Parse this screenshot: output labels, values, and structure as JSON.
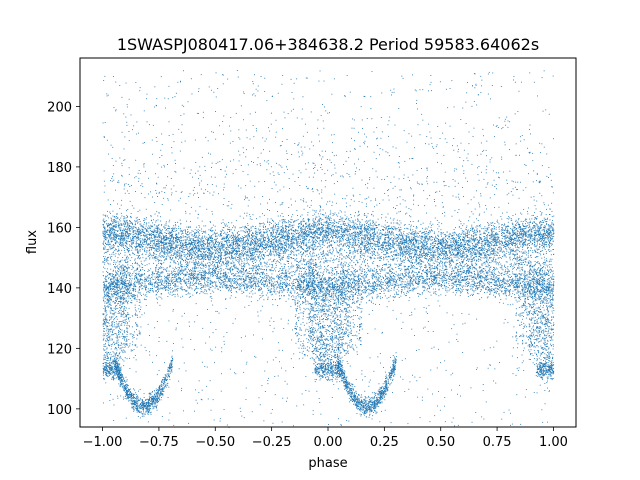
{
  "chart_data": {
    "type": "scatter",
    "title": "1SWASPJ080417.06+384638.2 Period 59583.64062s",
    "xlabel": "phase",
    "ylabel": "flux",
    "xlim": [
      -1.1,
      1.1
    ],
    "ylim": [
      94,
      216
    ],
    "xticks": [
      -1.0,
      -0.75,
      -0.5,
      -0.25,
      0.0,
      0.25,
      0.5,
      0.75,
      1.0
    ],
    "xtick_labels": [
      "−1.00",
      "−0.75",
      "−0.50",
      "−0.25",
      "0.00",
      "0.25",
      "0.50",
      "0.75",
      "1.00"
    ],
    "yticks": [
      100,
      120,
      140,
      160,
      180,
      200
    ],
    "ytick_labels": [
      "100",
      "120",
      "140",
      "160",
      "180",
      "200"
    ],
    "grid": false,
    "marker_color": "#1f77b4",
    "x_range_of_points": [
      -1.0,
      1.0
    ],
    "description_of_distribution": {
      "upper_band_center": 156,
      "lower_band_center": 142,
      "eclipse_phases": [
        -0.85,
        0.0,
        0.15
      ],
      "eclipse_minimum_flux": 100,
      "scatter_max_flux": 212
    }
  }
}
